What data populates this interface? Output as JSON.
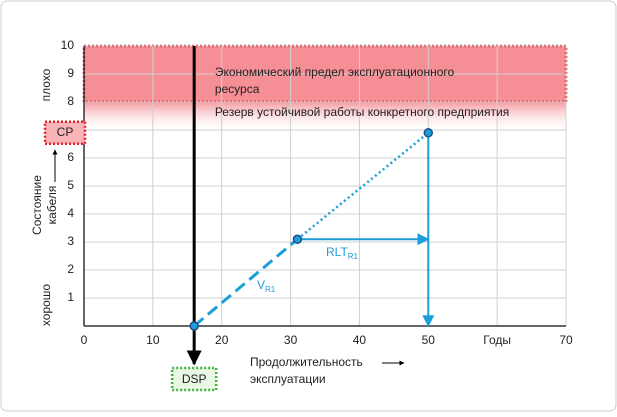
{
  "chart_data": {
    "type": "line",
    "x": [
      16,
      31,
      50
    ],
    "values": [
      0,
      3.1,
      6.9
    ],
    "color": "#1a9fd9",
    "xlim": [
      0,
      70
    ],
    "ylim": [
      0,
      10
    ],
    "xticks": [
      0,
      10,
      20,
      30,
      40,
      50,
      {
        "value": 60,
        "label": "Годы"
      },
      70
    ],
    "yticks": [
      1,
      2,
      3,
      4,
      5,
      6,
      7,
      8,
      9,
      10
    ],
    "grid": true,
    "y_label": [
      "Состояние",
      "кабеля"
    ],
    "y_top_label": "плохо",
    "y_bottom_label": "хорошо",
    "x_label": [
      "Продолжительность",
      "эксплуатации"
    ],
    "bands": [
      {
        "label": [
          "Экономический предел эксплуатационного",
          "ресурса"
        ],
        "range": [
          8,
          10
        ]
      },
      {
        "label": [
          "Резерв устойчивой работы конкретного предприятия"
        ],
        "range": [
          6.9,
          8
        ]
      }
    ],
    "cp": {
      "label": "CP",
      "value": 6.9
    },
    "dsp": {
      "label": "DSP",
      "value": 16
    },
    "rlt": {
      "label": "RLT",
      "sub": "R1"
    },
    "v": {
      "label": "V",
      "sub": "R1"
    }
  }
}
